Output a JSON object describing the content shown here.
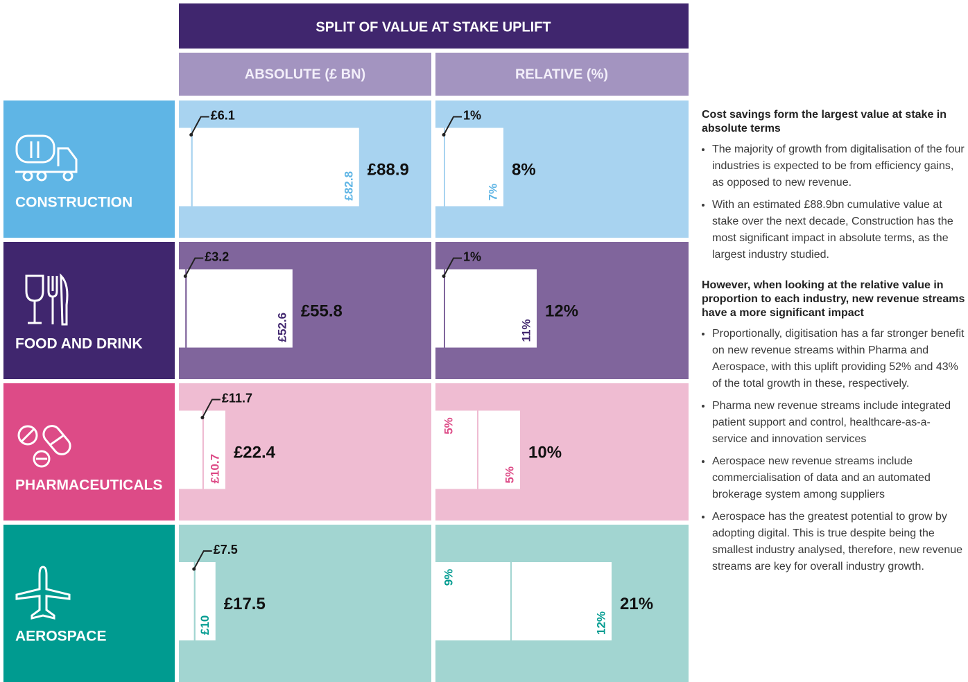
{
  "header": {
    "title": "SPLIT OF VALUE AT STAKE UPLIFT",
    "columns": [
      "ABSOLUTE (£ BN)",
      "RELATIVE (%)"
    ]
  },
  "rows": [
    {
      "name": "CONSTRUCTION",
      "color": "#5fb5e5",
      "light": "#a8d3f0",
      "text_color": "#5fb5e5",
      "absolute": {
        "values": [
          6.1,
          82.8
        ],
        "value_labels": [
          "£6.1",
          "£82.8"
        ],
        "total": 88.9,
        "total_label": "£88.9"
      },
      "relative": {
        "values": [
          1,
          7
        ],
        "value_labels": [
          "1%",
          "7%"
        ],
        "total": 8,
        "total_label": "8%"
      }
    },
    {
      "name": "FOOD AND DRINK",
      "color": "#40266e",
      "light": "#80659c",
      "text_color": "#40266e",
      "absolute": {
        "values": [
          3.2,
          52.6
        ],
        "value_labels": [
          "£3.2",
          "£52.6"
        ],
        "total": 55.8,
        "total_label": "£55.8"
      },
      "relative": {
        "values": [
          1,
          11
        ],
        "value_labels": [
          "1%",
          "11%"
        ],
        "total": 12,
        "total_label": "12%"
      }
    },
    {
      "name": "PHARMACEUTICALS",
      "color": "#dd4b87",
      "light": "#efbcd2",
      "text_color": "#dd4b87",
      "absolute": {
        "values": [
          11.7,
          10.7
        ],
        "value_labels": [
          "£11.7",
          "£10.7"
        ],
        "total": 22.4,
        "total_label": "£22.4"
      },
      "relative": {
        "values": [
          5,
          5
        ],
        "value_labels": [
          "5%",
          "5%"
        ],
        "total": 10,
        "total_label": "10%"
      }
    },
    {
      "name": "AEROSPACE",
      "color": "#009b90",
      "light": "#a2d5d1",
      "text_color": "#009b90",
      "absolute": {
        "values": [
          7.5,
          10
        ],
        "value_labels": [
          "£7.5",
          "£10"
        ],
        "total": 17.5,
        "total_label": "£17.5"
      },
      "relative": {
        "values": [
          9,
          12
        ],
        "value_labels": [
          "9%",
          "12%"
        ],
        "total": 21,
        "total_label": "21%"
      }
    }
  ],
  "sidebar": [
    {
      "heading": "Cost savings form the largest value at stake in absolute terms",
      "bullets": [
        "The majority of growth from digitalisation of the four industries is expected to be from efficiency gains, as opposed to new revenue.",
        "With an estimated £88.9bn cumulative value at stake over the next decade, Construction has the most significant impact in absolute terms, as the largest industry studied."
      ]
    },
    {
      "heading": "However, when looking at the relative value in proportion to each industry, new revenue streams have a more significant impact",
      "bullets": [
        "Proportionally, digitisation has a far stronger benefit on new revenue streams within Pharma and Aerospace, with this uplift providing 52% and 43% of the total growth in these, respectively.",
        "Pharma new revenue streams include integrated patient support and control, healthcare-as-a-service and innovation services",
        "Aerospace new revenue streams include commercialisation of data and an automated brokerage system among suppliers",
        "Aerospace has the greatest potential to grow by adopting digital. This is true despite being the smallest industry analysed, therefore, new revenue streams are key for overall industry growth."
      ]
    }
  ]
}
